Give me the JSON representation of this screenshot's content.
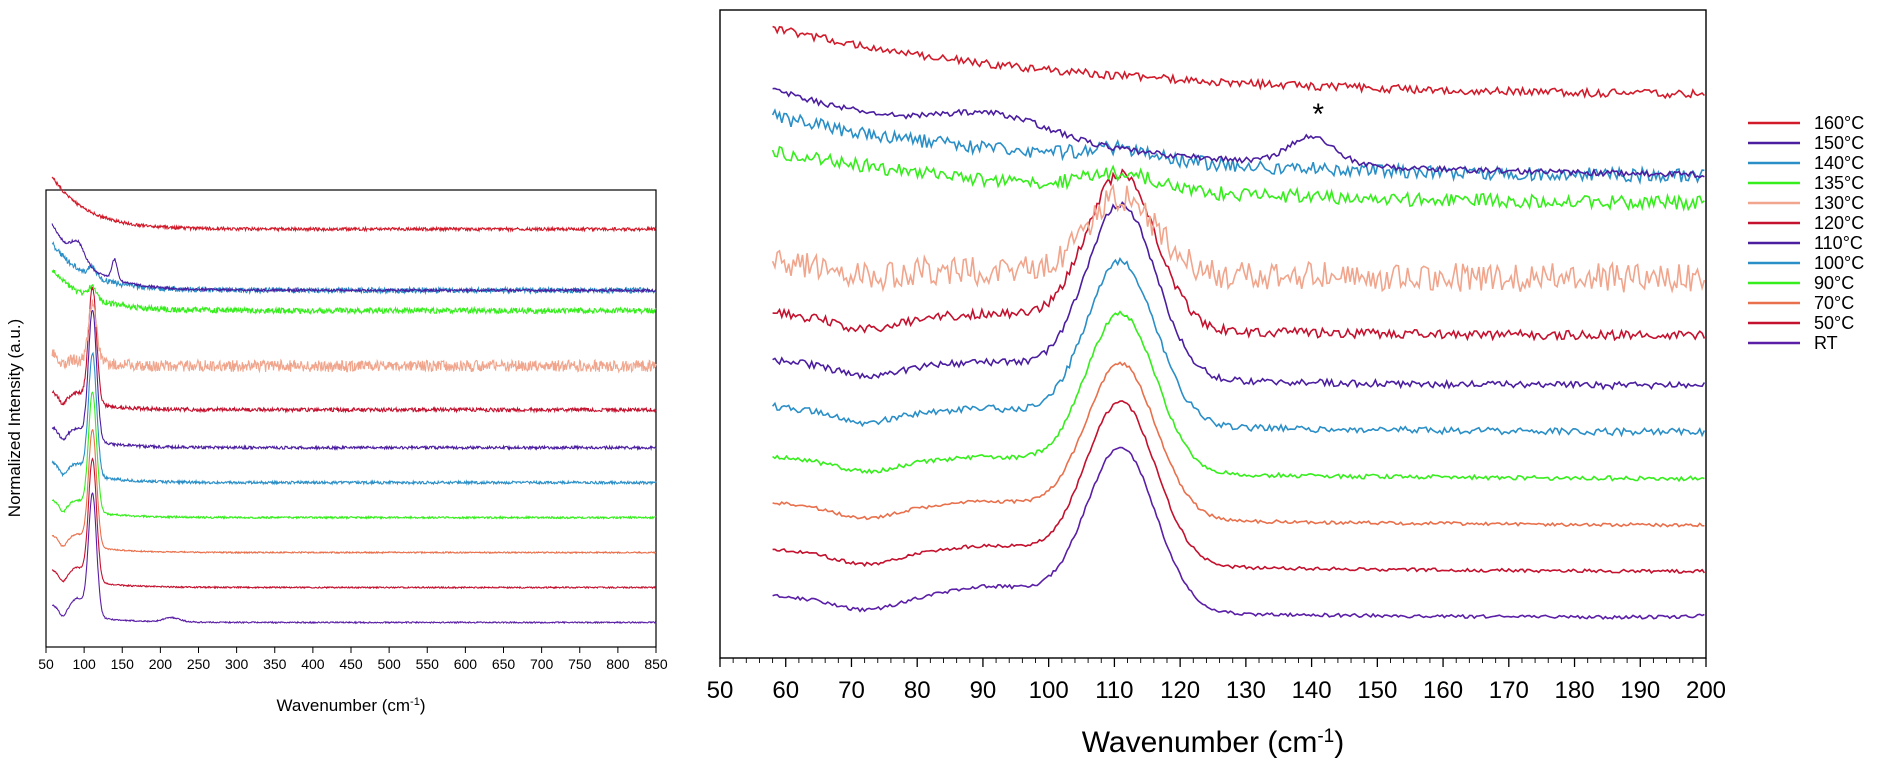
{
  "chart_data": [
    {
      "type": "line",
      "title": "",
      "xlabel_main": "Wavenumber (cm",
      "xlabel_sup": "-1",
      "xlabel_close": ")",
      "ylabel": "Normalized Intensity (a.u.)",
      "xlim": [
        50,
        850
      ],
      "ylim": [
        0,
        15
      ],
      "xticks": [
        50,
        100,
        150,
        200,
        250,
        300,
        350,
        400,
        450,
        500,
        550,
        600,
        650,
        700,
        750,
        800,
        850
      ],
      "series": [
        {
          "name": "RT",
          "color": "#5a1fa6",
          "offset": 0.5,
          "peak": 4.2,
          "bump": 0.55,
          "noise": 0.03,
          "tail": 0.6,
          "end": 0.0
        },
        {
          "name": "50°C",
          "color": "#c3112e",
          "offset": 1.7,
          "peak": 4.2,
          "bump": 0.4,
          "noise": 0.03,
          "tail": 0.6,
          "end": 0.0
        },
        {
          "name": "70°C",
          "color": "#e8704c",
          "offset": 2.9,
          "peak": 4.0,
          "bump": 0.35,
          "noise": 0.03,
          "tail": 0.6,
          "end": 0.0
        },
        {
          "name": "90°C",
          "color": "#35ee1c",
          "offset": 4.1,
          "peak": 4.1,
          "bump": 0.3,
          "noise": 0.04,
          "tail": 0.6,
          "end": 0.0
        },
        {
          "name": "100°C",
          "color": "#2a8fc7",
          "offset": 5.3,
          "peak": 4.2,
          "bump": 0.3,
          "noise": 0.06,
          "tail": 0.7,
          "end": 0.0
        },
        {
          "name": "110°C",
          "color": "#4b1ea0",
          "offset": 6.5,
          "peak": 4.5,
          "bump": 0.3,
          "noise": 0.06,
          "tail": 0.7,
          "end": 0.0
        },
        {
          "name": "120°C",
          "color": "#c3112e",
          "offset": 7.8,
          "peak": 4.0,
          "bump": 0.3,
          "noise": 0.08,
          "tail": 0.6,
          "end": 0.0
        },
        {
          "name": "130°C",
          "color": "#f0a58c",
          "offset": 9.3,
          "peak": 2.0,
          "bump": 0.0,
          "noise": 0.25,
          "tail": 0.4,
          "end": 0.0
        },
        {
          "name": "135°C",
          "color": "#35ee1c",
          "offset": 11.2,
          "peak": 0.4,
          "bump": 0.0,
          "noise": 0.12,
          "tail": 1.4,
          "end": 0.0
        },
        {
          "name": "140°C",
          "color": "#2a8fc7",
          "offset": 11.9,
          "peak": 0.3,
          "bump": 0.0,
          "noise": 0.12,
          "tail": 1.6,
          "end": 0.0
        },
        {
          "name": "150°C",
          "color": "#4b1ea0",
          "offset": 11.9,
          "peak": 0.0,
          "bump": 0.6,
          "noise": 0.05,
          "tail": 2.3,
          "end": 0.0
        },
        {
          "name": "160°C",
          "color": "#d11a2a",
          "offset": 14.0,
          "peak": 0.0,
          "bump": 0.0,
          "noise": 0.07,
          "tail": 1.8,
          "end": 0.0
        }
      ]
    },
    {
      "type": "line",
      "title": "",
      "xlabel_main": "Wavenumber (cm",
      "xlabel_sup": "-1",
      "xlabel_close": ")",
      "ylabel": "",
      "xlim": [
        50,
        200
      ],
      "ylim": [
        0,
        16
      ],
      "xticks": [
        50,
        60,
        70,
        80,
        90,
        100,
        110,
        120,
        130,
        140,
        150,
        160,
        170,
        180,
        190,
        200
      ],
      "annotation": {
        "text": "*",
        "x": 141
      },
      "legend": {
        "position": "right",
        "entries": [
          "160°C",
          "150°C",
          "140°C",
          "135°C",
          "130°C",
          "120°C",
          "110°C",
          "100°C",
          "90°C",
          "70°C",
          "50°C",
          "RT"
        ]
      }
    }
  ]
}
